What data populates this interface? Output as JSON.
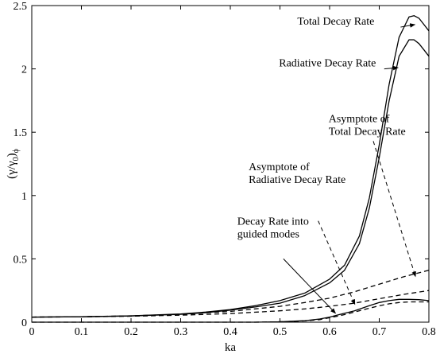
{
  "chart_data": {
    "type": "line",
    "title": "",
    "xlabel": "ka",
    "ylabel": "(γ/γ0)ϕ",
    "ylabel_parts": {
      "main": "(γ/γ",
      "sub": "0",
      "tail": ")",
      "subscript2": "ϕ"
    },
    "xlim": [
      0,
      0.8
    ],
    "ylim": [
      0,
      2.5
    ],
    "grid": false,
    "legend": "none",
    "x_ticks": [
      "0",
      "0.1",
      "0.2",
      "0.3",
      "0.4",
      "0.5",
      "0.6",
      "0.7",
      "0.8"
    ],
    "x_tick_values": [
      0,
      0.1,
      0.2,
      0.3,
      0.4,
      0.5,
      0.6,
      0.7,
      0.8
    ],
    "y_ticks": [
      "0",
      "0.5",
      "1",
      "1.5",
      "2",
      "2.5"
    ],
    "y_tick_values": [
      0,
      0.5,
      1,
      1.5,
      2,
      2.5
    ],
    "series": [
      {
        "style": "solid",
        "x": [
          0,
          0.1,
          0.2,
          0.3,
          0.35,
          0.4,
          0.45,
          0.5,
          0.55,
          0.6,
          0.63,
          0.66,
          0.68,
          0.7,
          0.72,
          0.74,
          0.76,
          0.77,
          0.78,
          0.79,
          0.8
        ],
        "y": [
          0.04,
          0.043,
          0.05,
          0.065,
          0.08,
          0.1,
          0.13,
          0.17,
          0.23,
          0.34,
          0.45,
          0.68,
          0.98,
          1.4,
          1.88,
          2.25,
          2.41,
          2.42,
          2.4,
          2.35,
          2.3
        ]
      },
      {
        "style": "solid",
        "x": [
          0,
          0.1,
          0.2,
          0.3,
          0.35,
          0.4,
          0.45,
          0.5,
          0.55,
          0.6,
          0.63,
          0.66,
          0.68,
          0.7,
          0.72,
          0.74,
          0.76,
          0.77,
          0.78,
          0.79,
          0.8
        ],
        "y": [
          0.04,
          0.043,
          0.049,
          0.062,
          0.075,
          0.095,
          0.12,
          0.15,
          0.21,
          0.31,
          0.41,
          0.62,
          0.9,
          1.3,
          1.75,
          2.1,
          2.23,
          2.23,
          2.2,
          2.15,
          2.1
        ]
      },
      {
        "style": "dashed",
        "x": [
          0,
          0.1,
          0.2,
          0.3,
          0.4,
          0.5,
          0.55,
          0.6,
          0.65,
          0.7,
          0.75,
          0.8
        ],
        "y": [
          0.04,
          0.043,
          0.05,
          0.062,
          0.085,
          0.125,
          0.155,
          0.19,
          0.24,
          0.3,
          0.36,
          0.41
        ]
      },
      {
        "style": "dashed",
        "x": [
          0,
          0.1,
          0.2,
          0.3,
          0.4,
          0.5,
          0.55,
          0.6,
          0.65,
          0.7,
          0.75,
          0.8
        ],
        "y": [
          0.04,
          0.042,
          0.047,
          0.055,
          0.068,
          0.09,
          0.105,
          0.125,
          0.15,
          0.185,
          0.22,
          0.25
        ]
      },
      {
        "style": "solid",
        "x": [
          0,
          0.45,
          0.5,
          0.55,
          0.58,
          0.6,
          0.62,
          0.65,
          0.68,
          0.7,
          0.72,
          0.74,
          0.76,
          0.78,
          0.8
        ],
        "y": [
          0,
          0,
          0.003,
          0.012,
          0.025,
          0.04,
          0.06,
          0.09,
          0.13,
          0.155,
          0.17,
          0.18,
          0.18,
          0.178,
          0.17
        ]
      },
      {
        "style": "dashed",
        "x": [
          0,
          0.45,
          0.5,
          0.55,
          0.58,
          0.6,
          0.62,
          0.65,
          0.68,
          0.7,
          0.72,
          0.74,
          0.76,
          0.78,
          0.8
        ],
        "y": [
          0,
          0,
          0.003,
          0.01,
          0.02,
          0.035,
          0.05,
          0.08,
          0.11,
          0.13,
          0.145,
          0.155,
          0.16,
          0.16,
          0.16
        ]
      }
    ],
    "annotations": [
      {
        "lines": [
          "Total Decay Rate"
        ],
        "anchor_x": 0.535,
        "anchor_y": 2.35,
        "align": "start",
        "arrow_from": [
          0.743,
          2.33
        ],
        "arrow_to": [
          0.772,
          2.35
        ],
        "style": "solid"
      },
      {
        "lines": [
          "Radiative Decay Rate"
        ],
        "anchor_x": 0.498,
        "anchor_y": 2.02,
        "align": "start",
        "arrow_from": [
          0.71,
          2.0
        ],
        "arrow_to": [
          0.738,
          2.01
        ],
        "style": "solid"
      },
      {
        "lines": [
          "Asymptote of",
          "Total Decay Rate"
        ],
        "anchor_x": 0.598,
        "anchor_y": 1.58,
        "align": "start",
        "arrow_from": [
          0.688,
          1.43
        ],
        "arrow_to": [
          0.773,
          0.36
        ],
        "style": "dashed"
      },
      {
        "lines": [
          "Asymptote of",
          "Radiative Decay Rate"
        ],
        "anchor_x": 0.437,
        "anchor_y": 1.2,
        "align": "start",
        "arrow_from": [
          0.577,
          0.8
        ],
        "arrow_to": [
          0.651,
          0.14
        ],
        "style": "dashed"
      },
      {
        "lines": [
          "Decay Rate into",
          "guided modes"
        ],
        "anchor_x": 0.414,
        "anchor_y": 0.77,
        "align": "start",
        "arrow_from": [
          0.507,
          0.5
        ],
        "arrow_to": [
          0.612,
          0.07
        ],
        "style": "solid"
      }
    ]
  }
}
